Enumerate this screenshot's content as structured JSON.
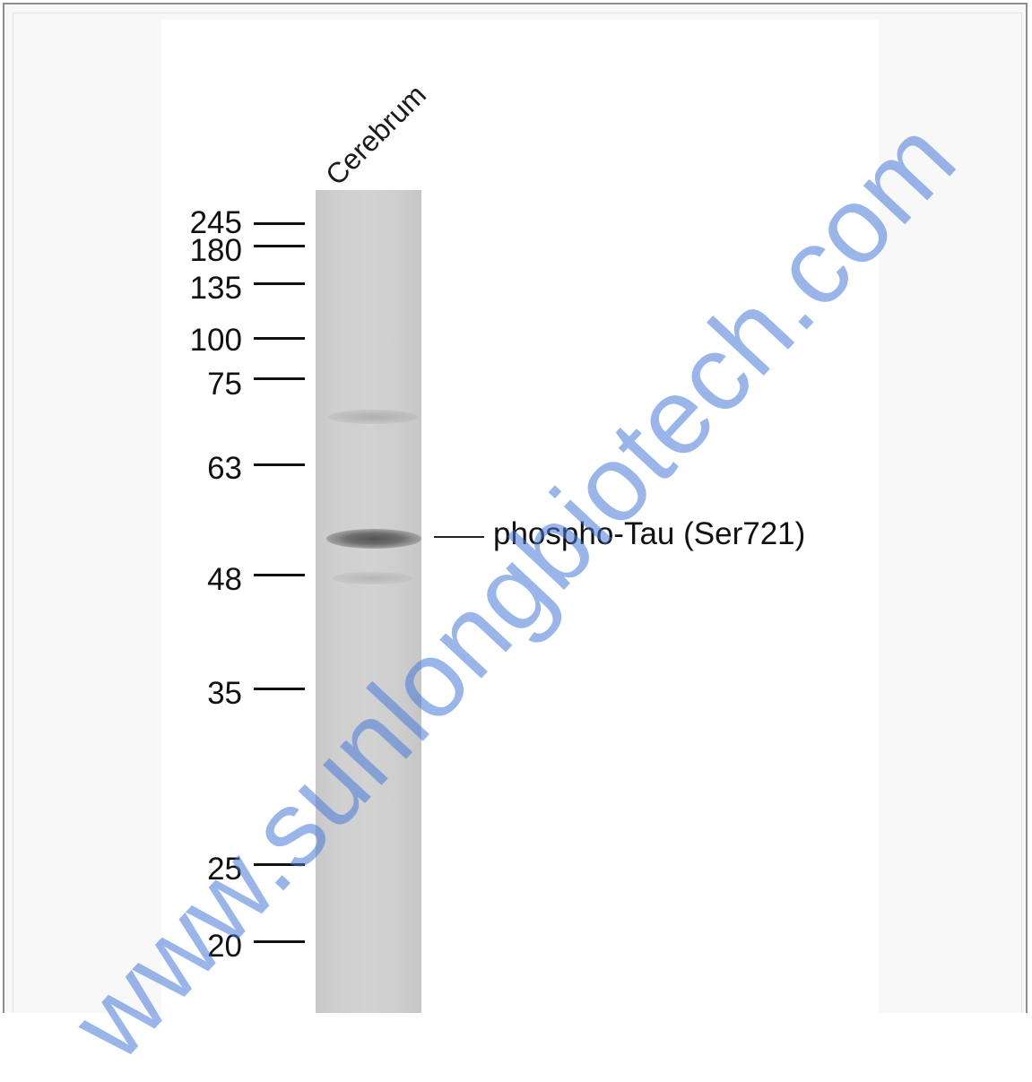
{
  "lane": {
    "label": "Cerebrum"
  },
  "markers": [
    {
      "label": "245"
    },
    {
      "label": "180"
    },
    {
      "label": "135"
    },
    {
      "label": "100"
    },
    {
      "label": "75"
    },
    {
      "label": "63"
    },
    {
      "label": "48"
    },
    {
      "label": "35"
    },
    {
      "label": "25"
    },
    {
      "label": "20"
    }
  ],
  "band": {
    "label": "phospho-Tau (Ser721)"
  },
  "watermark": {
    "text": "www.sunlongbiotech.com"
  },
  "colors": {
    "lane": "#d0d0d0",
    "band": "#555555",
    "watermark": "#4678d7",
    "frame": "#8e8e8e"
  }
}
